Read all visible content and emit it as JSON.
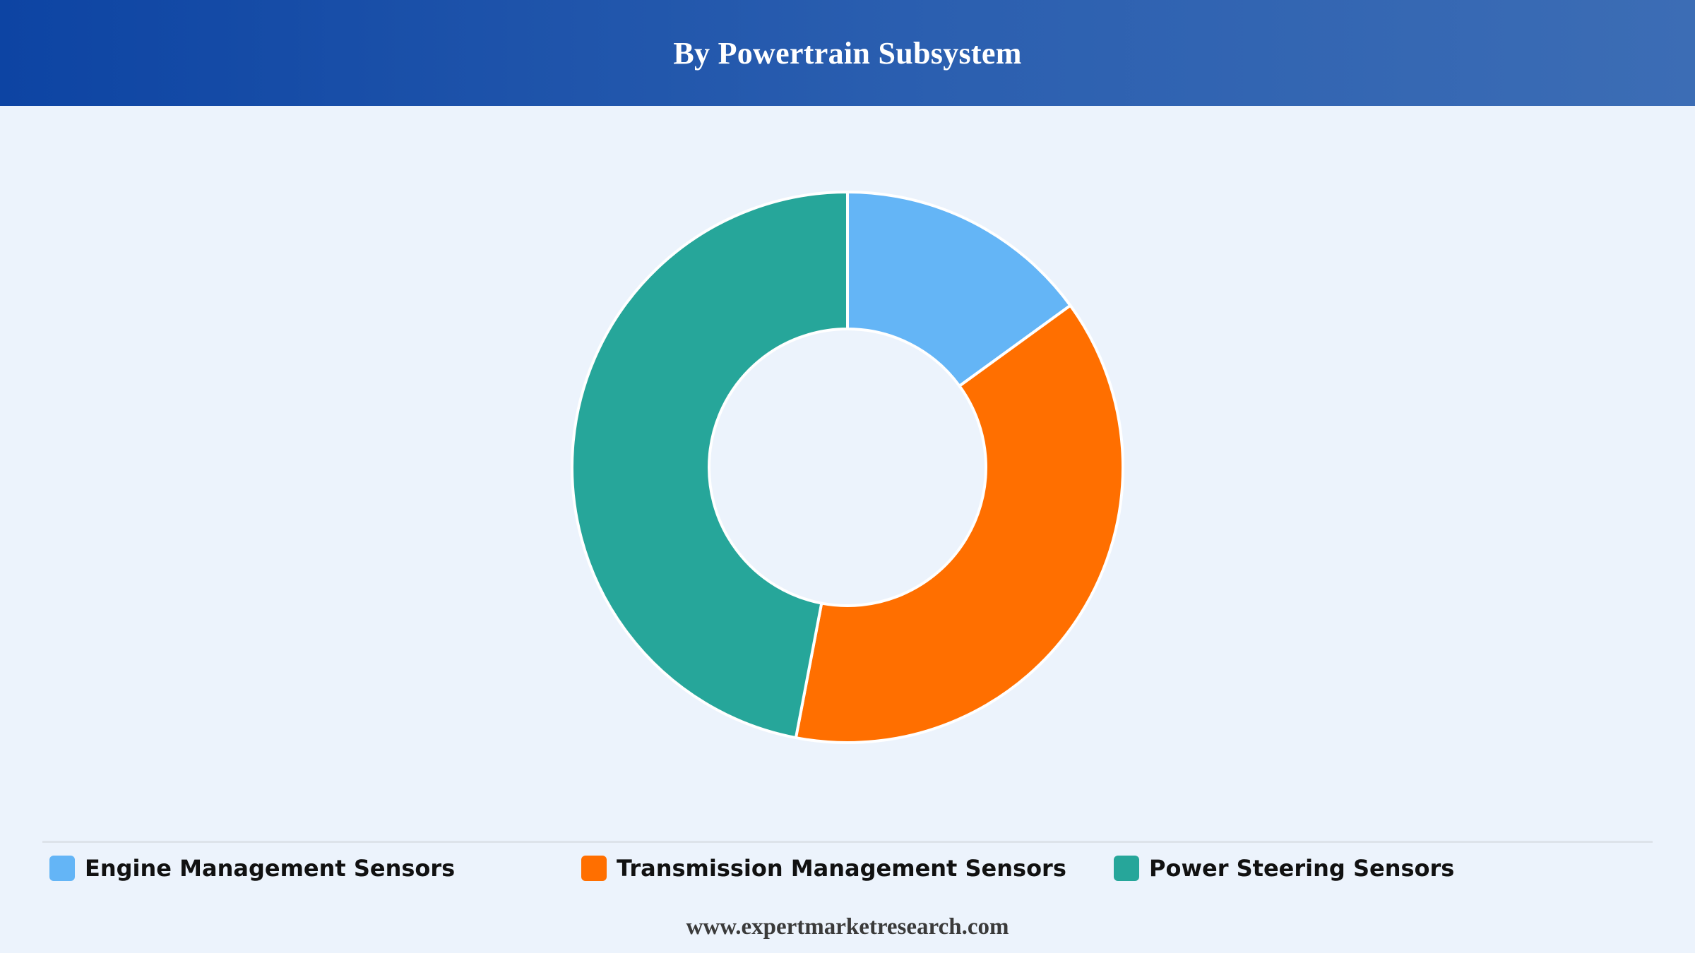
{
  "header": {
    "title": "By Powertrain Subsystem"
  },
  "chart_data": {
    "type": "pie",
    "donut": true,
    "title": "By Powertrain Subsystem",
    "categories": [
      "Engine Management Sensors",
      "Transmission Management Sensors",
      "Power Steering Sensors"
    ],
    "values": [
      15,
      38,
      47
    ],
    "unit": "%",
    "colors": [
      "#64b5f6",
      "#ff6f00",
      "#26a69a"
    ],
    "start_angle": "top (12 o'clock), clockwise",
    "legend_position": "bottom"
  },
  "legend": {
    "items": [
      {
        "label": "Engine Management Sensors",
        "color": "#64b5f6"
      },
      {
        "label": "Transmission Management Sensors",
        "color": "#ff6f00"
      },
      {
        "label": "Power Steering Sensors",
        "color": "#26a69a"
      }
    ]
  },
  "footer": {
    "source": "www.expertmarketresearch.com"
  }
}
